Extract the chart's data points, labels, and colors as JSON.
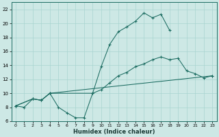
{
  "line1_x": [
    0,
    1,
    2,
    3,
    4,
    5,
    6,
    7,
    8,
    9,
    10,
    11,
    12,
    13,
    14,
    15,
    16,
    17,
    18
  ],
  "line1_y": [
    8.2,
    8.0,
    9.2,
    9.0,
    10.0,
    8.0,
    7.2,
    6.5,
    6.5,
    10.0,
    13.8,
    17.0,
    18.8,
    19.5,
    20.3,
    21.5,
    20.8,
    21.3,
    19.0
  ],
  "line2_x": [
    0,
    2,
    3,
    4,
    9,
    10,
    11,
    12,
    13,
    14,
    15,
    16,
    17,
    18,
    19,
    20,
    21,
    22,
    23
  ],
  "line2_y": [
    8.2,
    9.2,
    9.0,
    10.0,
    10.0,
    10.5,
    11.5,
    12.5,
    13.0,
    13.8,
    14.2,
    14.8,
    15.2,
    14.8,
    15.0,
    13.2,
    12.8,
    12.2,
    12.5
  ],
  "line3_x": [
    0,
    2,
    3,
    4,
    23
  ],
  "line3_y": [
    8.2,
    9.2,
    9.0,
    10.0,
    12.5
  ],
  "background_color": "#cde8e5",
  "grid_color": "#a8d4d0",
  "line_color": "#1a6b60",
  "xlabel": "Humidex (Indice chaleur)",
  "xlim": [
    -0.5,
    23.5
  ],
  "ylim": [
    6,
    23
  ],
  "xticks": [
    0,
    1,
    2,
    3,
    4,
    5,
    6,
    7,
    8,
    9,
    10,
    11,
    12,
    13,
    14,
    15,
    16,
    17,
    18,
    19,
    20,
    21,
    22,
    23
  ],
  "yticks": [
    6,
    8,
    10,
    12,
    14,
    16,
    18,
    20,
    22
  ]
}
